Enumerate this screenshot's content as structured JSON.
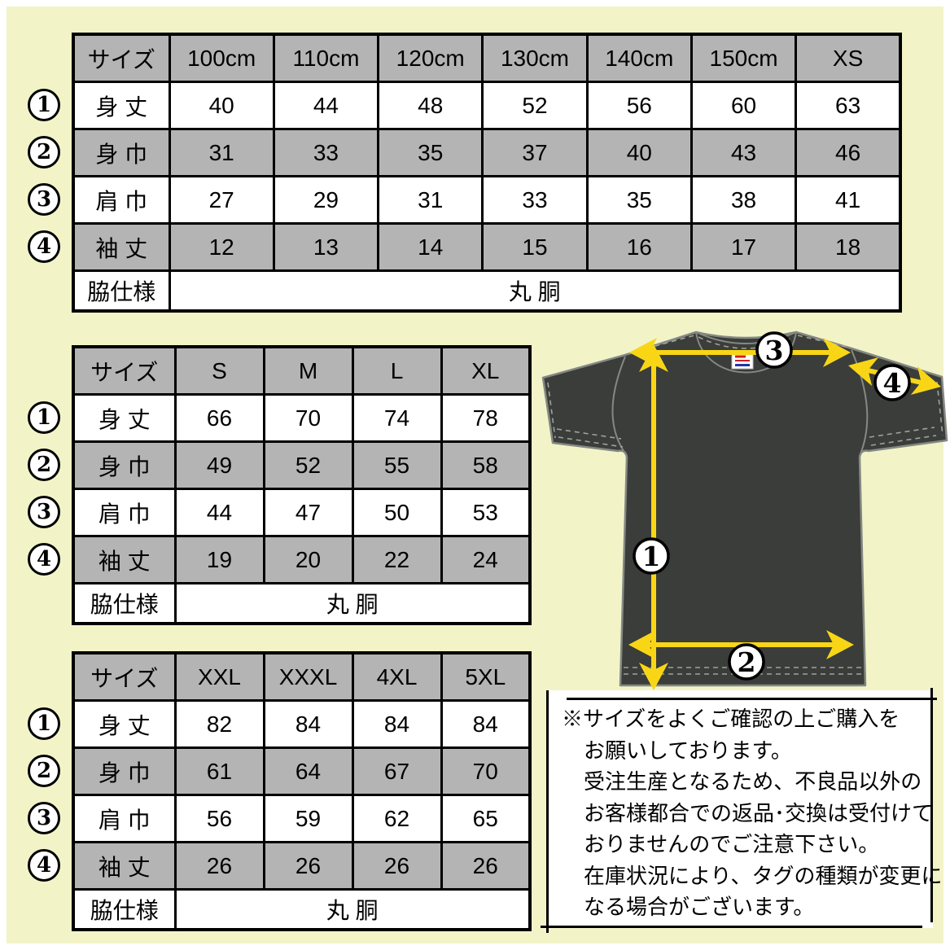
{
  "colors": {
    "background": "#f2f4c8",
    "table_gray": "#b4b4b4",
    "shirt_fill": "#3a3d39",
    "shirt_outline": "#858883",
    "arrow_yellow": "#f8d616",
    "border_black": "#000000"
  },
  "measure_markers": [
    "1",
    "2",
    "3",
    "4"
  ],
  "tables": [
    {
      "name": "kids-sizes",
      "columns": [
        "サイズ",
        "100cm",
        "110cm",
        "120cm",
        "130cm",
        "140cm",
        "150cm",
        "XS"
      ],
      "rows": [
        {
          "marker": "1",
          "label": "身 丈",
          "values": [
            "40",
            "44",
            "48",
            "52",
            "56",
            "60",
            "63"
          ]
        },
        {
          "marker": "2",
          "label": "身 巾",
          "values": [
            "31",
            "33",
            "35",
            "37",
            "40",
            "43",
            "46"
          ]
        },
        {
          "marker": "3",
          "label": "肩 巾",
          "values": [
            "27",
            "29",
            "31",
            "33",
            "35",
            "38",
            "41"
          ]
        },
        {
          "marker": "4",
          "label": "袖 丈",
          "values": [
            "12",
            "13",
            "14",
            "15",
            "16",
            "17",
            "18"
          ]
        }
      ],
      "footer_label": "脇仕様",
      "footer_value": "丸 胴"
    },
    {
      "name": "adult-sizes",
      "columns": [
        "サイズ",
        "S",
        "M",
        "L",
        "XL"
      ],
      "rows": [
        {
          "marker": "1",
          "label": "身 丈",
          "values": [
            "66",
            "70",
            "74",
            "78"
          ]
        },
        {
          "marker": "2",
          "label": "身 巾",
          "values": [
            "49",
            "52",
            "55",
            "58"
          ]
        },
        {
          "marker": "3",
          "label": "肩 巾",
          "values": [
            "44",
            "47",
            "50",
            "53"
          ]
        },
        {
          "marker": "4",
          "label": "袖 丈",
          "values": [
            "19",
            "20",
            "22",
            "24"
          ]
        }
      ],
      "footer_label": "脇仕様",
      "footer_value": "丸 胴"
    },
    {
      "name": "large-sizes",
      "columns": [
        "サイズ",
        "XXL",
        "XXXL",
        "4XL",
        "5XL"
      ],
      "rows": [
        {
          "marker": "1",
          "label": "身 丈",
          "values": [
            "82",
            "84",
            "84",
            "84"
          ]
        },
        {
          "marker": "2",
          "label": "身 巾",
          "values": [
            "61",
            "64",
            "67",
            "70"
          ]
        },
        {
          "marker": "3",
          "label": "肩 巾",
          "values": [
            "56",
            "59",
            "62",
            "65"
          ]
        },
        {
          "marker": "4",
          "label": "袖 丈",
          "values": [
            "26",
            "26",
            "26",
            "26"
          ]
        }
      ],
      "footer_label": "脇仕様",
      "footer_value": "丸 胴"
    }
  ],
  "diagram": {
    "markers": {
      "m1": "1",
      "m2": "2",
      "m3": "3",
      "m4": "4"
    }
  },
  "note": {
    "lines": [
      "※サイズをよくご確認の上ご購入を",
      "お願いしております。",
      "受注生産となるため、不良品以外の",
      "お客様都合での返品･交換は受付けて",
      "おりませんのでご注意下さい。",
      "在庫状況により、タグの種類が変更に",
      "なる場合がございます。"
    ]
  }
}
